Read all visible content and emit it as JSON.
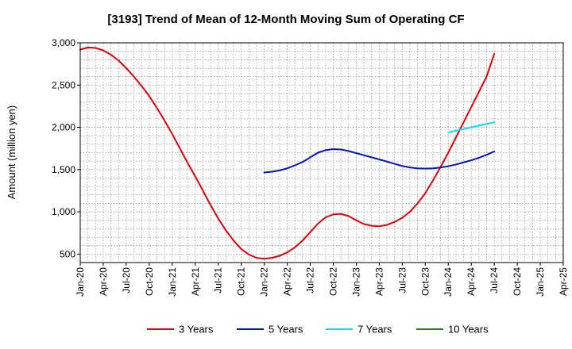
{
  "chart_data": {
    "type": "line",
    "title": "[3193]  Trend of Mean of 12-Month Moving Sum of Operating CF",
    "xlabel": "",
    "ylabel": "Amount (million yen)",
    "ylim": [
      400,
      3000
    ],
    "yticks": [
      500,
      1000,
      1500,
      2000,
      2500,
      3000
    ],
    "ytick_labels": [
      "500",
      "1,000",
      "1,500",
      "2,000",
      "2,500",
      "3,000"
    ],
    "xlim_months": [
      0,
      63
    ],
    "xticks": [
      {
        "label": "Jan-20",
        "month": 0
      },
      {
        "label": "Apr-20",
        "month": 3
      },
      {
        "label": "Jul-20",
        "month": 6
      },
      {
        "label": "Oct-20",
        "month": 9
      },
      {
        "label": "Jan-21",
        "month": 12
      },
      {
        "label": "Apr-21",
        "month": 15
      },
      {
        "label": "Jul-21",
        "month": 18
      },
      {
        "label": "Oct-21",
        "month": 21
      },
      {
        "label": "Jan-22",
        "month": 24
      },
      {
        "label": "Apr-22",
        "month": 27
      },
      {
        "label": "Jul-22",
        "month": 30
      },
      {
        "label": "Oct-22",
        "month": 33
      },
      {
        "label": "Jan-23",
        "month": 36
      },
      {
        "label": "Apr-23",
        "month": 39
      },
      {
        "label": "Jul-23",
        "month": 42
      },
      {
        "label": "Oct-23",
        "month": 45
      },
      {
        "label": "Jan-24",
        "month": 48
      },
      {
        "label": "Apr-24",
        "month": 51
      },
      {
        "label": "Jul-24",
        "month": 54
      },
      {
        "label": "Oct-24",
        "month": 57
      },
      {
        "label": "Jan-25",
        "month": 60
      },
      {
        "label": "Apr-25",
        "month": 63
      }
    ],
    "grid": true,
    "legend_position": "bottom",
    "series": [
      {
        "name": "3 Years",
        "color": "#e8000b",
        "points": [
          [
            0,
            2920
          ],
          [
            1,
            2945
          ],
          [
            2,
            2940
          ],
          [
            3,
            2910
          ],
          [
            4,
            2860
          ],
          [
            5,
            2790
          ],
          [
            6,
            2700
          ],
          [
            7,
            2600
          ],
          [
            8,
            2490
          ],
          [
            9,
            2370
          ],
          [
            10,
            2230
          ],
          [
            11,
            2080
          ],
          [
            12,
            1920
          ],
          [
            13,
            1750
          ],
          [
            14,
            1580
          ],
          [
            15,
            1420
          ],
          [
            16,
            1250
          ],
          [
            17,
            1080
          ],
          [
            18,
            920
          ],
          [
            19,
            780
          ],
          [
            20,
            660
          ],
          [
            21,
            560
          ],
          [
            22,
            495
          ],
          [
            23,
            455
          ],
          [
            24,
            445
          ],
          [
            25,
            455
          ],
          [
            26,
            480
          ],
          [
            27,
            520
          ],
          [
            28,
            580
          ],
          [
            29,
            660
          ],
          [
            30,
            760
          ],
          [
            31,
            860
          ],
          [
            32,
            935
          ],
          [
            33,
            970
          ],
          [
            34,
            975
          ],
          [
            35,
            950
          ],
          [
            36,
            900
          ],
          [
            37,
            855
          ],
          [
            38,
            835
          ],
          [
            39,
            830
          ],
          [
            40,
            845
          ],
          [
            41,
            880
          ],
          [
            42,
            930
          ],
          [
            43,
            1000
          ],
          [
            44,
            1100
          ],
          [
            45,
            1220
          ],
          [
            46,
            1370
          ],
          [
            47,
            1530
          ],
          [
            48,
            1700
          ],
          [
            49,
            1880
          ],
          [
            50,
            2060
          ],
          [
            51,
            2240
          ],
          [
            52,
            2420
          ],
          [
            53,
            2600
          ],
          [
            54,
            2870
          ]
        ]
      },
      {
        "name": "5 Years",
        "color": "#0014c8",
        "points": [
          [
            24,
            1465
          ],
          [
            25,
            1475
          ],
          [
            26,
            1490
          ],
          [
            27,
            1515
          ],
          [
            28,
            1550
          ],
          [
            29,
            1590
          ],
          [
            30,
            1645
          ],
          [
            31,
            1700
          ],
          [
            32,
            1730
          ],
          [
            33,
            1742
          ],
          [
            34,
            1738
          ],
          [
            35,
            1720
          ],
          [
            36,
            1695
          ],
          [
            37,
            1670
          ],
          [
            38,
            1645
          ],
          [
            39,
            1620
          ],
          [
            40,
            1595
          ],
          [
            41,
            1568
          ],
          [
            42,
            1543
          ],
          [
            43,
            1525
          ],
          [
            44,
            1515
          ],
          [
            45,
            1512
          ],
          [
            46,
            1515
          ],
          [
            47,
            1525
          ],
          [
            48,
            1540
          ],
          [
            49,
            1560
          ],
          [
            50,
            1585
          ],
          [
            51,
            1610
          ],
          [
            52,
            1640
          ],
          [
            53,
            1675
          ],
          [
            54,
            1715
          ]
        ]
      },
      {
        "name": "7 Years",
        "color": "#00e5ee",
        "points": [
          [
            48,
            1940
          ],
          [
            49,
            1960
          ],
          [
            50,
            1980
          ],
          [
            51,
            2000
          ],
          [
            52,
            2020
          ],
          [
            53,
            2040
          ],
          [
            54,
            2060
          ]
        ]
      },
      {
        "name": "10 Years",
        "color": "#1a8a1a",
        "points": []
      }
    ]
  }
}
